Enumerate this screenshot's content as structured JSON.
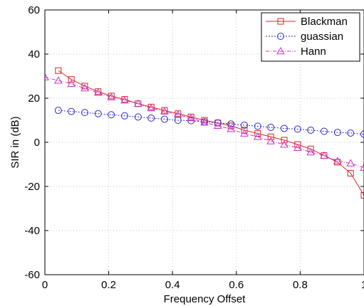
{
  "chart_data": {
    "type": "line",
    "title": "",
    "xlabel": "Frequency Offset",
    "ylabel": "SIR in (dB)",
    "xlim": [
      0,
      1
    ],
    "ylim": [
      -60,
      60
    ],
    "x_ticks": [
      0,
      0.2,
      0.4,
      0.6,
      0.8,
      1
    ],
    "x_tick_labels": [
      "0",
      "0.2",
      "0.4",
      "0.6",
      "0.8",
      "1"
    ],
    "y_ticks": [
      -60,
      -40,
      -20,
      0,
      20,
      40,
      60
    ],
    "y_tick_labels": [
      "-60",
      "-40",
      "-20",
      "0",
      "20",
      "40",
      "60"
    ],
    "grid": true,
    "legend_position": "top-right",
    "series": [
      {
        "name": "Blackman",
        "color": "#d62728",
        "marker": "square",
        "line_style": "solid",
        "x": [
          0.042,
          0.083,
          0.125,
          0.167,
          0.208,
          0.25,
          0.292,
          0.333,
          0.375,
          0.417,
          0.458,
          0.5,
          0.542,
          0.583,
          0.625,
          0.667,
          0.708,
          0.75,
          0.792,
          0.833,
          0.875,
          0.917,
          0.958,
          1.0
        ],
        "y": [
          32.5,
          28.5,
          25.5,
          23.0,
          21.0,
          19.5,
          17.5,
          16.0,
          14.5,
          13.0,
          11.5,
          10.0,
          8.8,
          7.5,
          5.5,
          4.0,
          2.5,
          1.0,
          -1.0,
          -3.0,
          -6.0,
          -9.0,
          -14.0,
          -24.0
        ]
      },
      {
        "name": "guassian",
        "color": "#2b2bcc",
        "marker": "circle",
        "line_style": "dotted",
        "x": [
          0.042,
          0.083,
          0.125,
          0.167,
          0.208,
          0.25,
          0.292,
          0.333,
          0.375,
          0.417,
          0.458,
          0.5,
          0.542,
          0.583,
          0.625,
          0.667,
          0.708,
          0.75,
          0.792,
          0.833,
          0.875,
          0.917,
          0.958,
          1.0
        ],
        "y": [
          14.5,
          14.0,
          13.5,
          13.0,
          12.5,
          12.0,
          11.5,
          11.0,
          10.5,
          10.0,
          9.8,
          9.3,
          8.8,
          8.3,
          7.8,
          7.3,
          6.8,
          6.3,
          6.0,
          5.5,
          5.0,
          4.5,
          4.2,
          3.7
        ]
      },
      {
        "name": "Hann",
        "color": "#cc33cc",
        "marker": "triangle",
        "line_style": "dashdot",
        "x": [
          0.0,
          0.042,
          0.083,
          0.125,
          0.167,
          0.208,
          0.25,
          0.292,
          0.333,
          0.375,
          0.417,
          0.458,
          0.5,
          0.542,
          0.583,
          0.625,
          0.667,
          0.708,
          0.75,
          0.792,
          0.833,
          0.875,
          0.917,
          0.958,
          1.0
        ],
        "y": [
          29.5,
          28.0,
          26.5,
          24.5,
          22.5,
          20.5,
          19.0,
          17.5,
          15.5,
          14.0,
          12.5,
          11.0,
          9.0,
          7.5,
          6.0,
          4.0,
          2.5,
          0.5,
          -1.0,
          -2.5,
          -4.5,
          -6.0,
          -8.5,
          -9.5,
          -11.5
        ]
      }
    ]
  }
}
